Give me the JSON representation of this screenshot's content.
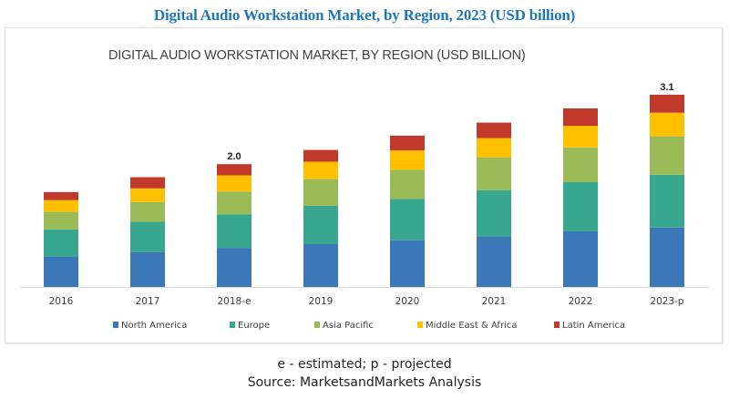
{
  "header": {
    "title": "Digital Audio Workstation Market, by Region, 2023 (USD billion)"
  },
  "footer": {
    "note": "e - estimated; p - projected",
    "source": "Source: MarketsandMarkets Analysis"
  },
  "chart_data": {
    "type": "bar",
    "stacked": true,
    "title": "DIGITAL AUDIO WORKSTATION MARKET, BY REGION (USD BILLION)",
    "xlabel": "",
    "ylabel": "",
    "ylim": [
      0,
      3.1
    ],
    "grid": false,
    "legend_position": "bottom",
    "categories": [
      "2016",
      "2017",
      "2018-e",
      "2019",
      "2020",
      "2021",
      "2022",
      "2023-p"
    ],
    "series": [
      {
        "name": "North America",
        "color": "#3a78b8",
        "values": [
          0.49,
          0.56,
          0.63,
          0.69,
          0.76,
          0.82,
          0.9,
          0.96
        ]
      },
      {
        "name": "Europe",
        "color": "#39a78e",
        "values": [
          0.44,
          0.49,
          0.54,
          0.62,
          0.66,
          0.74,
          0.79,
          0.85
        ]
      },
      {
        "name": "Asia Pacific",
        "color": "#9bbb59",
        "values": [
          0.28,
          0.32,
          0.37,
          0.43,
          0.47,
          0.53,
          0.56,
          0.62
        ]
      },
      {
        "name": "Middle East & Africa",
        "color": "#ffc000",
        "values": [
          0.19,
          0.22,
          0.26,
          0.28,
          0.31,
          0.31,
          0.35,
          0.38
        ]
      },
      {
        "name": "Latin America",
        "color": "#c0392b",
        "values": [
          0.13,
          0.18,
          0.18,
          0.19,
          0.24,
          0.25,
          0.28,
          0.29
        ]
      }
    ],
    "annotations": [
      {
        "category": "2018-e",
        "text": "2.0"
      },
      {
        "category": "2023-p",
        "text": "3.1"
      }
    ]
  }
}
